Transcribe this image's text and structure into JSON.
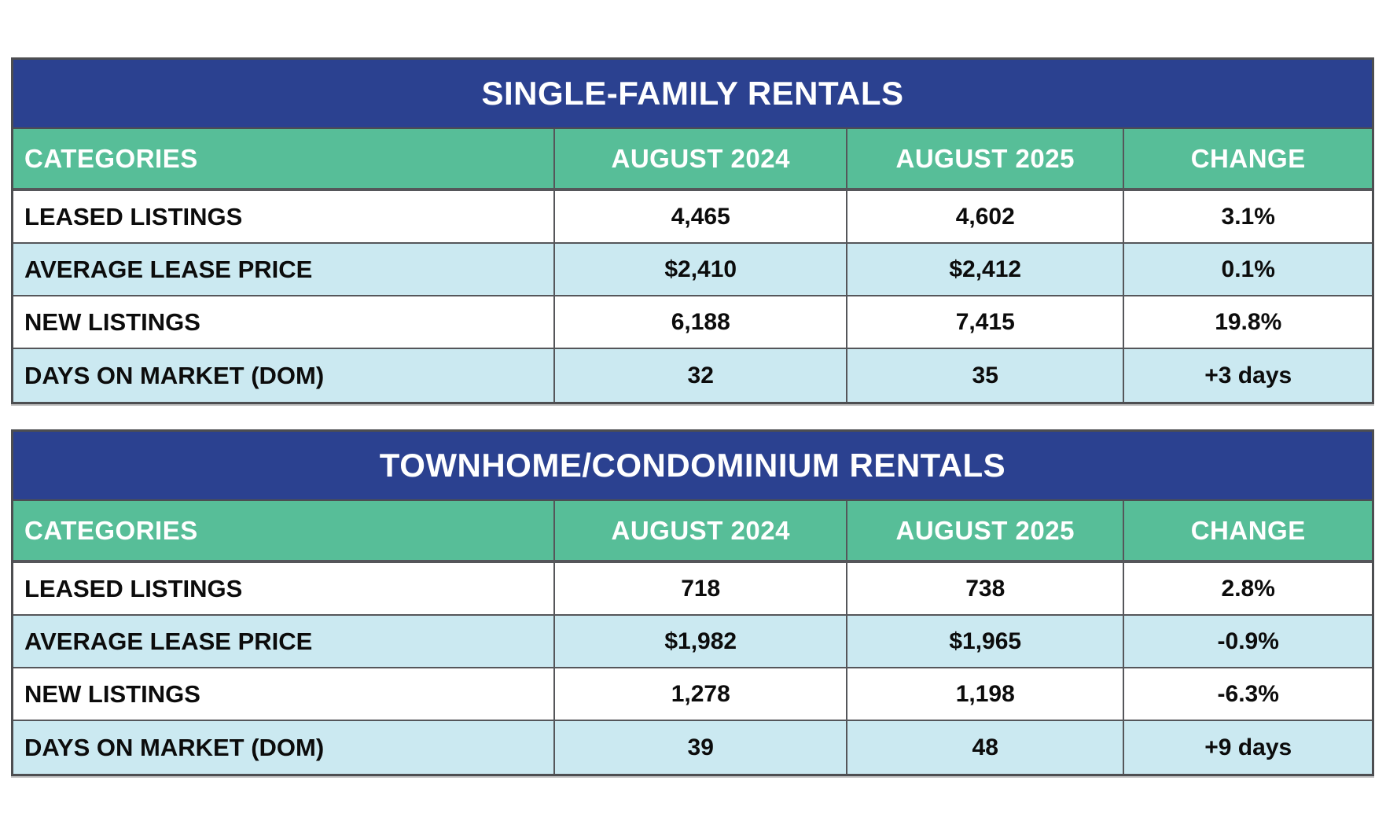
{
  "colors": {
    "title_bg": "#2b4190",
    "header_bg": "#57be98",
    "row_bg": "#ffffff",
    "row_alt_bg": "#cbe9f1",
    "border": "#55565a",
    "outer_border": "#4d4e51",
    "title_text": "#ffffff",
    "header_text": "#ffffff",
    "cell_text": "#0c0c0c",
    "page_bg": "#ffffff"
  },
  "chart_data": [
    {
      "type": "table",
      "title": "SINGLE-FAMILY RENTALS",
      "columns": [
        "CATEGORIES",
        "AUGUST 2024",
        "AUGUST 2025",
        "CHANGE"
      ],
      "rows": [
        [
          "LEASED LISTINGS",
          "4,465",
          "4,602",
          "3.1%"
        ],
        [
          "AVERAGE LEASE PRICE",
          "$2,410",
          "$2,412",
          "0.1%"
        ],
        [
          "NEW LISTINGS",
          "6,188",
          "7,415",
          "19.8%"
        ],
        [
          "DAYS ON MARKET (DOM)",
          "32",
          "35",
          "+3 days"
        ]
      ]
    },
    {
      "type": "table",
      "title": "TOWNHOME/CONDOMINIUM RENTALS",
      "columns": [
        "CATEGORIES",
        "AUGUST 2024",
        "AUGUST 2025",
        "CHANGE"
      ],
      "rows": [
        [
          "LEASED LISTINGS",
          "718",
          "738",
          "2.8%"
        ],
        [
          "AVERAGE LEASE PRICE",
          "$1,982",
          "$1,965",
          "-0.9%"
        ],
        [
          "NEW LISTINGS",
          "1,278",
          "1,198",
          "-6.3%"
        ],
        [
          "DAYS ON MARKET (DOM)",
          "39",
          "48",
          "+9 days"
        ]
      ]
    }
  ]
}
